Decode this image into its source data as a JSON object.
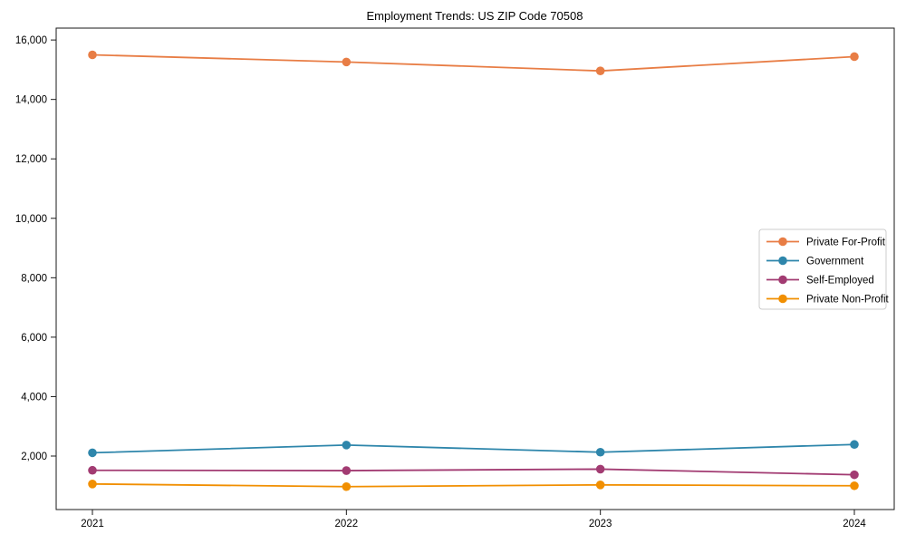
{
  "chart_data": {
    "type": "line",
    "title": "Employment Trends: US ZIP Code 70508",
    "xlabel": "",
    "ylabel": "",
    "x": [
      "2021",
      "2022",
      "2023",
      "2024"
    ],
    "series": [
      {
        "name": "Private For-Profit",
        "color": "#e87d45",
        "values": [
          15500,
          15260,
          14960,
          15440
        ]
      },
      {
        "name": "Government",
        "color": "#2e86ab",
        "values": [
          2110,
          2370,
          2130,
          2390
        ]
      },
      {
        "name": "Self-Employed",
        "color": "#a23b72",
        "values": [
          1520,
          1510,
          1560,
          1370
        ]
      },
      {
        "name": "Private Non-Profit",
        "color": "#f18f01",
        "values": [
          1060,
          970,
          1030,
          1000
        ]
      }
    ],
    "y_ticks": {
      "values": [
        2000,
        4000,
        6000,
        8000,
        10000,
        12000,
        14000,
        16000
      ],
      "labels": [
        "2,000",
        "4,000",
        "6,000",
        "8,000",
        "10,000",
        "12,000",
        "14,000",
        "16,000"
      ]
    },
    "ylim": [
      200,
      16400
    ],
    "grid": false,
    "legend": {
      "position": "center right",
      "entries": [
        "Private For-Profit",
        "Government",
        "Self-Employed",
        "Private Non-Profit"
      ]
    },
    "colors": {
      "spine": "#1a1a1a",
      "legend_border": "#cccccc",
      "background": "#ffffff"
    }
  }
}
